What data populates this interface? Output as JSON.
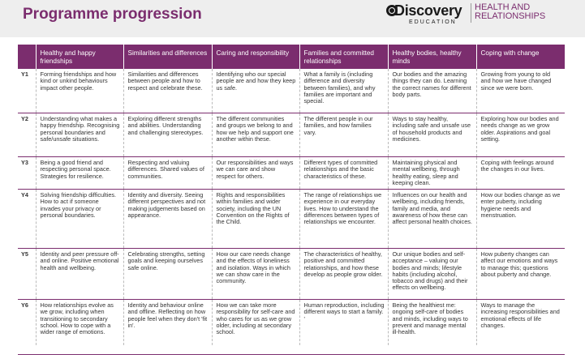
{
  "page": {
    "title": "Programme progression"
  },
  "logo": {
    "main": "Discovery",
    "sub": "EDUCATION",
    "right_line1": "HEALTH AND",
    "right_line2": "RELATIONSHIPS"
  },
  "colors": {
    "accent": "#7b2d6e",
    "header_band": "#eeeeee"
  },
  "table": {
    "headers": [
      "",
      "Healthy and happy friendships",
      "Similarities and differences",
      "Caring and responsibility",
      "Families and committed relationships",
      "Healthy bodies, healthy minds",
      "Coping with change"
    ],
    "rows": [
      {
        "year": "Y1",
        "cells": [
          "Forming friendships and how kind or unkind behaviours impact other people.",
          "Similarities and differences between people and how to respect and celebrate these.",
          "Identifying who our special people are and how they keep us safe.",
          "What a family is (including difference and diversity between families), and why families are important and special.",
          "Our bodies and the amazing things they can do. Learning the correct names for different body parts.",
          "Growing from young to old and how we have changed since we were born."
        ]
      },
      {
        "year": "Y2",
        "cells": [
          "Understanding what makes a happy friendship. Recognising personal boundaries and safe/unsafe situations.",
          "Exploring different strengths and abilities. Understanding and challenging stereotypes.",
          "The different communities and groups we belong to and how we help and support one another within these.",
          "The different people in our families, and how families vary.",
          "Ways to stay healthy, including safe and unsafe use of household products and medicines.",
          "Exploring how our bodies and needs change as we grow older. Aspirations and goal setting."
        ]
      },
      {
        "year": "Y3",
        "cells": [
          "Being a good friend and respecting personal space. Strategies for resilience.",
          "Respecting and valuing differences. Shared values of communities.",
          "Our responsibilities and ways we can care and show respect for others.",
          "Different types of committed relationships and the basic characteristics of these.",
          "Maintaining physical and mental wellbeing, through healthy eating, sleep and keeping clean.",
          "Coping with feelings around the changes in our lives."
        ]
      },
      {
        "year": "Y4",
        "cells": [
          "Solving friendship difficulties. How to act if someone invades your privacy or personal boundaries.",
          "Identity and diversity. Seeing different perspectives and not making judgements based on appearance.",
          "Rights and responsibilities within families and wider society, including the UN Convention on the Rights of the Child.",
          "The range of relationships we experience in our everyday lives. How to understand the differences between types of relationships we encounter.",
          "Influences on our health and wellbeing, including friends, family and media, and awareness of how these can affect personal health choices.",
          "How our bodies change as we enter puberty, including hygiene needs and menstruation."
        ]
      },
      {
        "year": "Y5",
        "cells": [
          "Identity and peer pressure off- and online. Positive emotional health and wellbeing.",
          "Celebrating strengths, setting goals and keeping ourselves safe online.",
          "How our care needs change and the effects of loneliness and isolation. Ways in which we can show care in the community.",
          "The characteristics of healthy, positive and committed relationships, and how these develop as people grow older.",
          "Our unique bodies and self-acceptance – valuing our bodies and minds; lifestyle habits (including alcohol, tobacco and drugs) and their effects on wellbeing.",
          "How puberty changes can affect our emotions and ways to manage this; questions about puberty and change."
        ]
      },
      {
        "year": "Y6",
        "cells": [
          "How relationships evolve as we grow, including when transitioning to secondary school. How to cope with a wider range of emotions.",
          "Identity and behaviour online and offline. Reflecting on how people feel when they don't 'fit in'.",
          "How we can take more responsibility for self-care and who cares for us as we grow older, including at secondary school.",
          "Human reproduction, including different ways to start a family. '",
          "Being the healthiest me: ongoing self-care of bodies and minds, including ways to prevent and manage mental ill-health.",
          "Ways to manage the increasing responsibilities and emotional effects of life changes."
        ]
      }
    ]
  }
}
